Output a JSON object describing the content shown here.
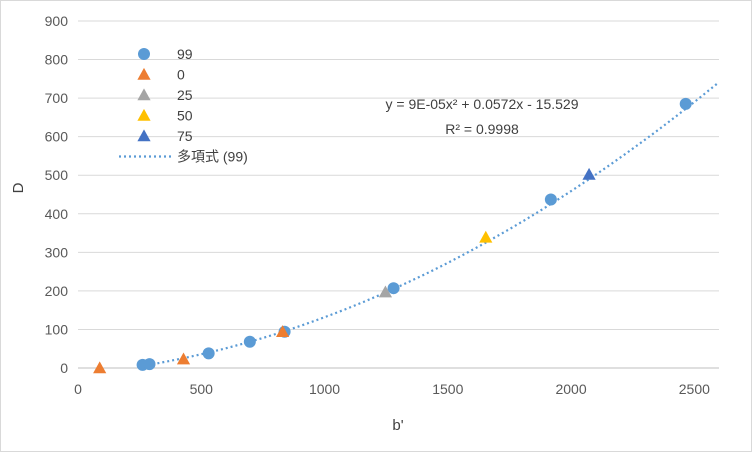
{
  "chart_data": {
    "type": "scatter",
    "xlabel": "b'",
    "ylabel": "D",
    "xlim": [
      0,
      2600
    ],
    "ylim": [
      0,
      900
    ],
    "x_ticks": [
      "0",
      "500",
      "1000",
      "1500",
      "2000",
      "2500"
    ],
    "y_ticks": [
      "0",
      "100",
      "200",
      "300",
      "400",
      "500",
      "600",
      "700",
      "800",
      "900"
    ],
    "grid": "horizontal",
    "legend_position": "top-left",
    "series": [
      {
        "name": "99",
        "marker": "circle",
        "color": "#5b9bd5",
        "points": [
          [
            262,
            8
          ],
          [
            290,
            10
          ],
          [
            530,
            38
          ],
          [
            697,
            68
          ],
          [
            838,
            94
          ],
          [
            1280,
            207
          ],
          [
            1918,
            437
          ],
          [
            2465,
            685
          ]
        ]
      },
      {
        "name": "0",
        "marker": "triangle",
        "color": "#ed7d31",
        "points": [
          [
            88,
            0
          ],
          [
            428,
            23
          ],
          [
            830,
            94
          ]
        ]
      },
      {
        "name": "25",
        "marker": "triangle",
        "color": "#a5a5a5",
        "points": [
          [
            1247,
            197
          ]
        ]
      },
      {
        "name": "50",
        "marker": "triangle",
        "color": "#ffc000",
        "points": [
          [
            1654,
            339
          ]
        ]
      },
      {
        "name": "75",
        "marker": "triangle",
        "color": "#4472c4",
        "points": [
          [
            2073,
            502
          ]
        ]
      }
    ],
    "trendline": {
      "name": "多項式 (99)",
      "type": "polynomial",
      "coefficients": [
        9e-05,
        0.0572,
        -15.529
      ],
      "x_range": [
        262,
        2600
      ],
      "color": "#5b9bd5",
      "equation_label": "y = 9E-05x² + 0.0572x - 15.529",
      "r2_label": "R² = 0.9998"
    }
  }
}
